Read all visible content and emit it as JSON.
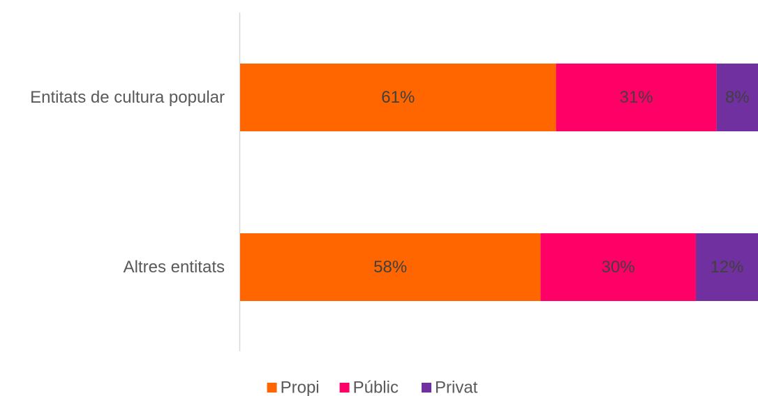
{
  "chart_data": {
    "type": "bar",
    "orientation": "horizontal",
    "stacked": true,
    "normalized": true,
    "categories": [
      "Entitats de cultura popular",
      "Altres entitats"
    ],
    "series": [
      {
        "name": "Propi",
        "values": [
          61,
          58
        ],
        "labels": [
          "61%",
          "58%"
        ],
        "color": "#FF6600"
      },
      {
        "name": "Públic",
        "values": [
          31,
          30
        ],
        "labels": [
          "31%",
          "30%"
        ],
        "color": "#FF0066"
      },
      {
        "name": "Privat",
        "values": [
          8,
          12
        ],
        "labels": [
          "8%",
          "12%"
        ],
        "color": "#7030A0"
      }
    ],
    "xlim": [
      0,
      100
    ],
    "grid": false,
    "legend_position": "bottom"
  }
}
